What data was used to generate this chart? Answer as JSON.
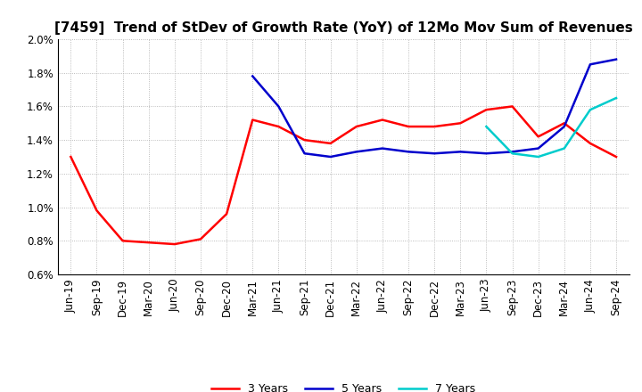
{
  "title": "[7459]  Trend of StDev of Growth Rate (YoY) of 12Mo Mov Sum of Revenues",
  "ylim": [
    0.006,
    0.02
  ],
  "yticks": [
    0.006,
    0.008,
    0.01,
    0.012,
    0.014,
    0.016,
    0.018,
    0.02
  ],
  "ytick_labels": [
    "0.6%",
    "0.8%",
    "1.0%",
    "1.2%",
    "1.4%",
    "1.6%",
    "1.8%",
    "2.0%"
  ],
  "x_labels": [
    "Jun-19",
    "Sep-19",
    "Dec-19",
    "Mar-20",
    "Jun-20",
    "Sep-20",
    "Dec-20",
    "Mar-21",
    "Jun-21",
    "Sep-21",
    "Dec-21",
    "Mar-22",
    "Jun-22",
    "Sep-22",
    "Dec-22",
    "Mar-23",
    "Jun-23",
    "Sep-23",
    "Dec-23",
    "Mar-24",
    "Jun-24",
    "Sep-24"
  ],
  "series": {
    "3 Years": {
      "color": "#ff0000",
      "values": [
        0.013,
        0.0098,
        0.008,
        0.0079,
        0.0078,
        0.0081,
        0.0096,
        0.0152,
        0.0148,
        0.014,
        0.0138,
        0.0148,
        0.0152,
        0.0148,
        0.0148,
        0.015,
        0.0158,
        0.016,
        0.0142,
        0.015,
        0.0138,
        0.013
      ]
    },
    "5 Years": {
      "color": "#0000cc",
      "values": [
        null,
        null,
        null,
        null,
        null,
        null,
        null,
        0.0178,
        0.016,
        0.0132,
        0.013,
        0.0133,
        0.0135,
        0.0133,
        0.0132,
        0.0133,
        0.0132,
        0.0133,
        0.0135,
        0.0148,
        0.0185,
        0.0188
      ]
    },
    "7 Years": {
      "color": "#00cccc",
      "values": [
        null,
        null,
        null,
        null,
        null,
        null,
        null,
        null,
        null,
        null,
        null,
        null,
        null,
        null,
        null,
        null,
        0.0148,
        0.0132,
        0.013,
        0.0135,
        0.0158,
        0.0165
      ]
    },
    "10 Years": {
      "color": "#008000",
      "values": [
        null,
        null,
        null,
        null,
        null,
        null,
        null,
        null,
        null,
        null,
        null,
        null,
        null,
        null,
        null,
        null,
        null,
        null,
        null,
        null,
        null,
        null
      ]
    }
  },
  "background_color": "#ffffff",
  "grid_color": "#aaaaaa",
  "title_fontsize": 11,
  "tick_fontsize": 8.5,
  "legend_fontsize": 9
}
